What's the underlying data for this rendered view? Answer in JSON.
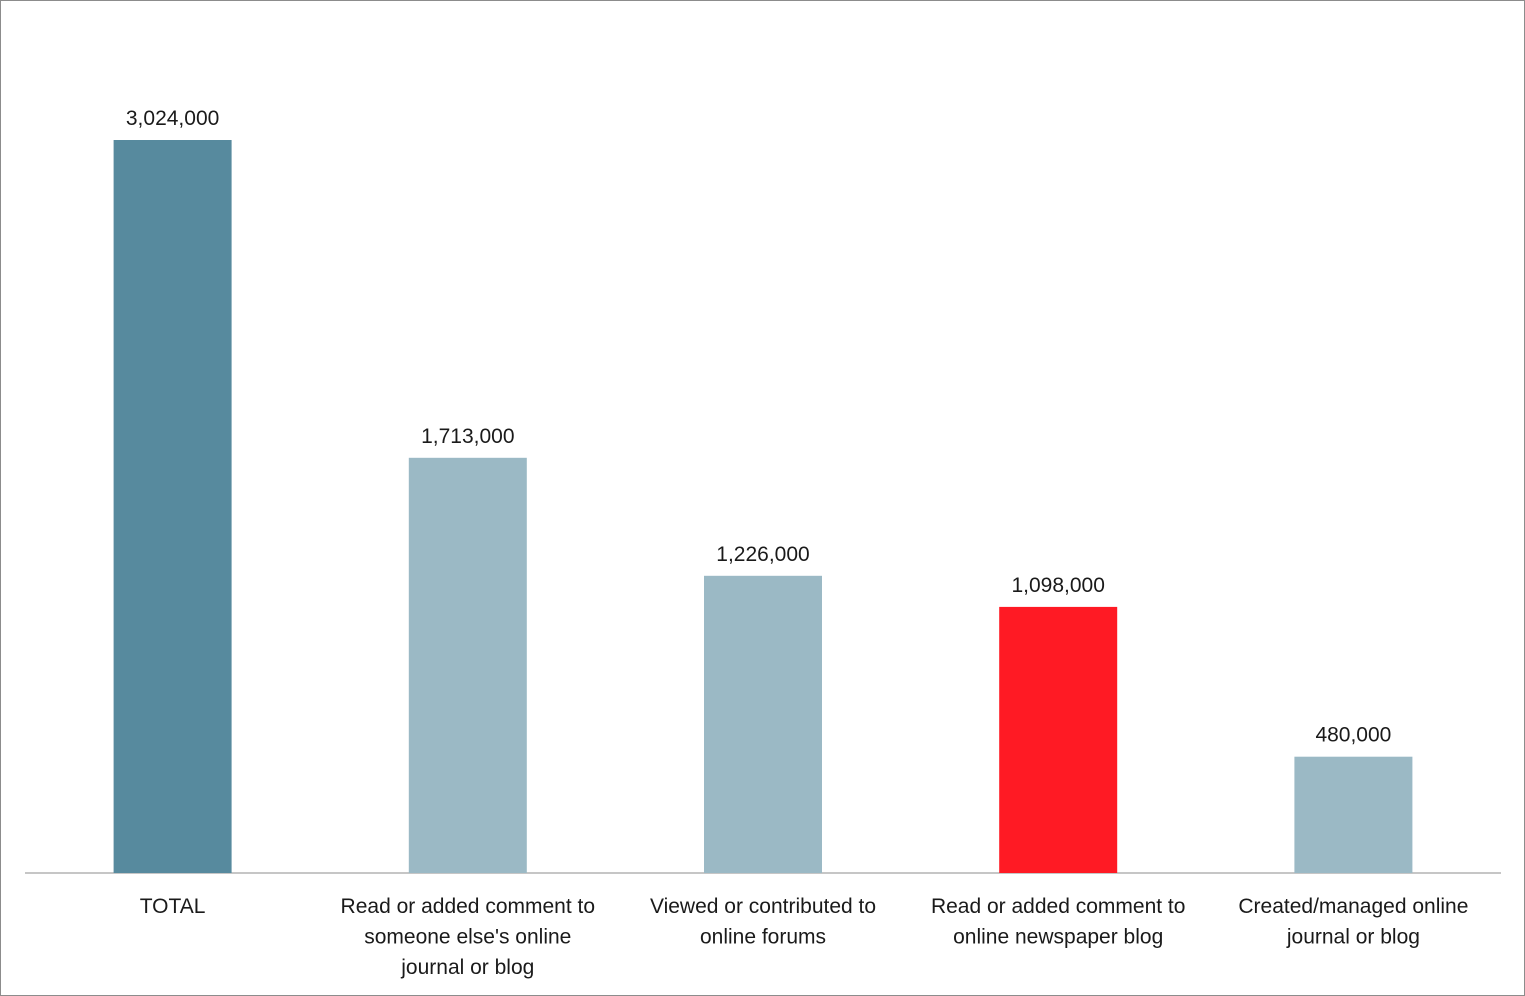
{
  "chart_data": {
    "type": "bar",
    "categories": [
      [
        "TOTAL"
      ],
      [
        "Read or added comment to",
        "someone else's online",
        "journal or blog"
      ],
      [
        "Viewed or contributed to",
        "online forums"
      ],
      [
        "Read or added comment to",
        "online newspaper blog"
      ],
      [
        "Created/managed online",
        "journal or blog"
      ]
    ],
    "values": [
      3024000,
      1713000,
      1226000,
      1098000,
      480000
    ],
    "value_labels": [
      "3,024,000",
      "1,713,000",
      "1,226,000",
      "1,098,000",
      "480,000"
    ],
    "bar_colors": [
      "#578a9e",
      "#9bb9c5",
      "#9bb9c5",
      "#ff1a24",
      "#9bb9c5"
    ],
    "axis_color": "#8c8c8c",
    "title": "",
    "xlabel": "",
    "ylabel": "",
    "ylim": [
      0,
      3600000
    ],
    "grid": false,
    "legend": "none"
  }
}
